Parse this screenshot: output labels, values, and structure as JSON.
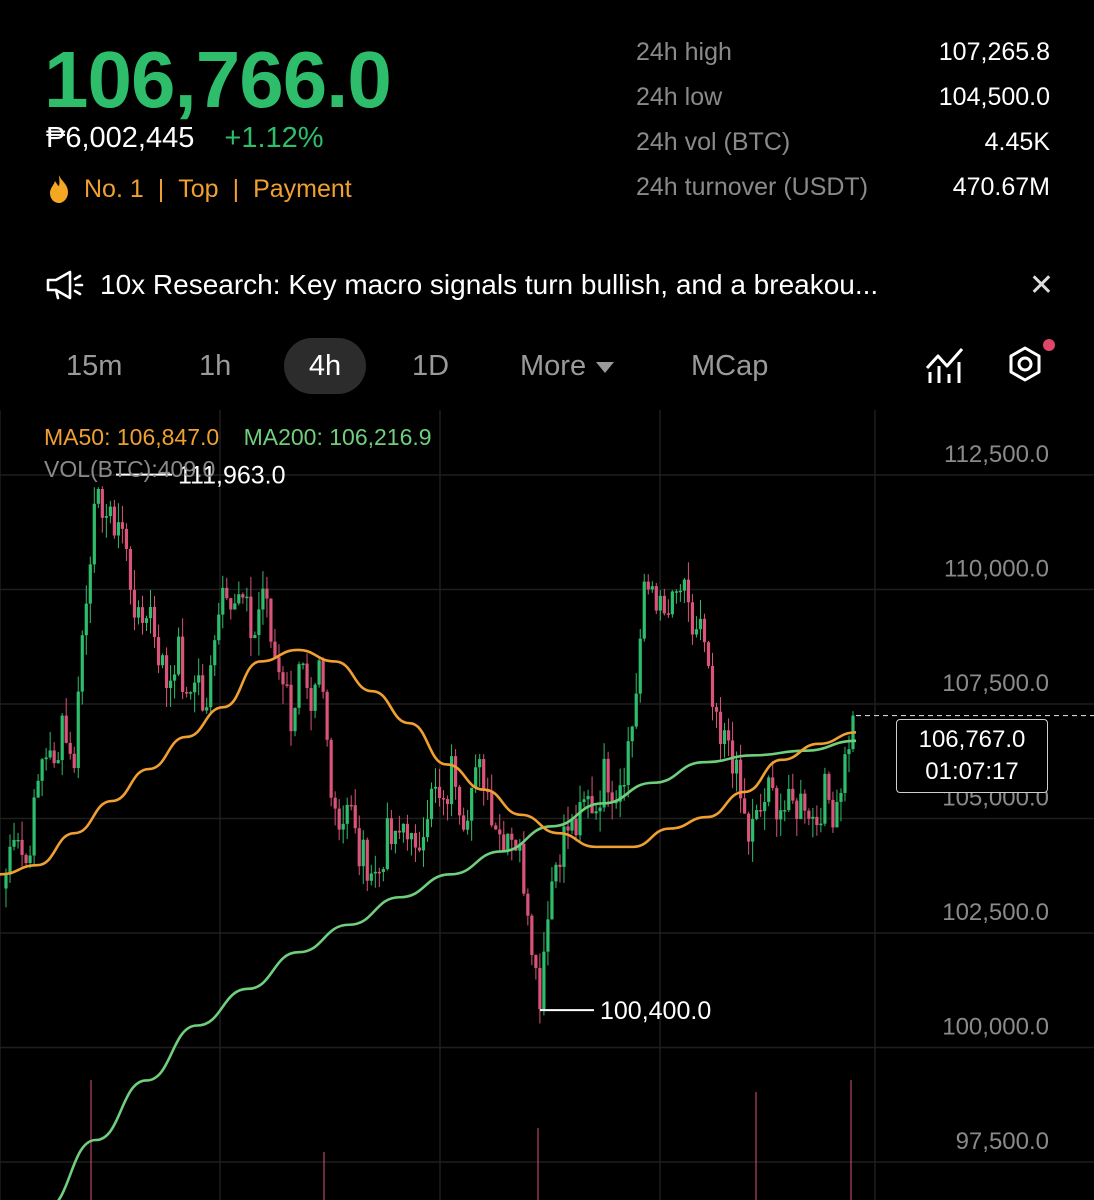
{
  "header": {
    "price": "106,766.0",
    "local_price": "₱6,002,445",
    "change": "+1.12%",
    "tags": [
      "No. 1",
      "Top",
      "Payment"
    ]
  },
  "stats": [
    {
      "label": "24h high",
      "value": "107,265.8"
    },
    {
      "label": "24h low",
      "value": "104,500.0"
    },
    {
      "label": "24h vol (BTC)",
      "value": "4.45K"
    },
    {
      "label": "24h turnover (USDT)",
      "value": "470.67M"
    }
  ],
  "news": {
    "icon": "megaphone-icon",
    "text": "10x Research: Key macro signals turn bullish, and a breakou..."
  },
  "tabs": {
    "t15m": "15m",
    "t1h": "1h",
    "t4h": "4h",
    "t1d": "1D",
    "more": "More",
    "mcap": "MCap",
    "active": "4h"
  },
  "legend": {
    "ma50": "MA50: 106,847.0",
    "ma200": "MA200: 106,216.9",
    "vol": "VOL(BTC):409.0"
  },
  "colors": {
    "up": "#2ebd6b",
    "down": "#d9537a",
    "ma50": "#f0a030",
    "ma200": "#6fcf7c",
    "notification_dot": "#e0456a"
  },
  "chart_data": {
    "type": "candlestick",
    "y_ticks": [
      "112,500.0",
      "110,000.0",
      "107,500.0",
      "105,000.0",
      "102,500.0",
      "100,000.0",
      "97,500.0"
    ],
    "y_tick_values": [
      112500,
      110000,
      107500,
      105000,
      102500,
      100000,
      97500
    ],
    "ylim": [
      96200,
      113500
    ],
    "high_marker": {
      "label": "111,963.0",
      "value": 111963
    },
    "low_marker": {
      "label": "100,400.0",
      "value": 100400
    },
    "current": {
      "price": "106,767.0",
      "countdown": "01:07:17",
      "value": 106767
    },
    "close_path": [
      103300,
      104600,
      103400,
      104700,
      106200,
      105500,
      106900,
      105400,
      108500,
      110800,
      111500,
      110900,
      111100,
      109800,
      108600,
      109300,
      108200,
      107400,
      108300,
      106900,
      107900,
      106500,
      108900,
      109800,
      109300,
      109200,
      108400,
      109600,
      108200,
      107800,
      106700,
      107900,
      106400,
      107900,
      105600,
      104400,
      105000,
      103700,
      103600,
      103200,
      104100,
      103900,
      104600,
      103500,
      104700,
      105100,
      104600,
      105800,
      104600,
      105200,
      105600,
      104800,
      104100,
      104400,
      103700,
      102500,
      100500,
      102800,
      103800,
      104300,
      104300,
      104900,
      104800,
      105600,
      105100,
      105700,
      106800,
      109300,
      109700,
      108800,
      109100,
      109600,
      108600,
      108700,
      107200,
      106000,
      106300,
      105100,
      104100,
      104500,
      105100,
      104900,
      104700,
      104800,
      105000,
      104400,
      105100,
      104700,
      105600,
      106767
    ],
    "ma50": [
      103300,
      103500,
      104200,
      104900,
      105600,
      106300,
      106950,
      107950,
      108200,
      107950,
      107300,
      106600,
      105700,
      105150,
      104600,
      104200,
      103900,
      103900,
      104300,
      104550,
      105100,
      105800,
      106150,
      106400
    ],
    "ma200": [
      96000,
      97500,
      98800,
      100000,
      100800,
      101600,
      102200,
      102800,
      103300,
      103800,
      104350,
      104850,
      105300,
      105750,
      105900,
      106000,
      106216.9
    ],
    "volume_spikes": [
      1,
      0.4,
      0.6,
      0.9,
      1.0
    ]
  }
}
